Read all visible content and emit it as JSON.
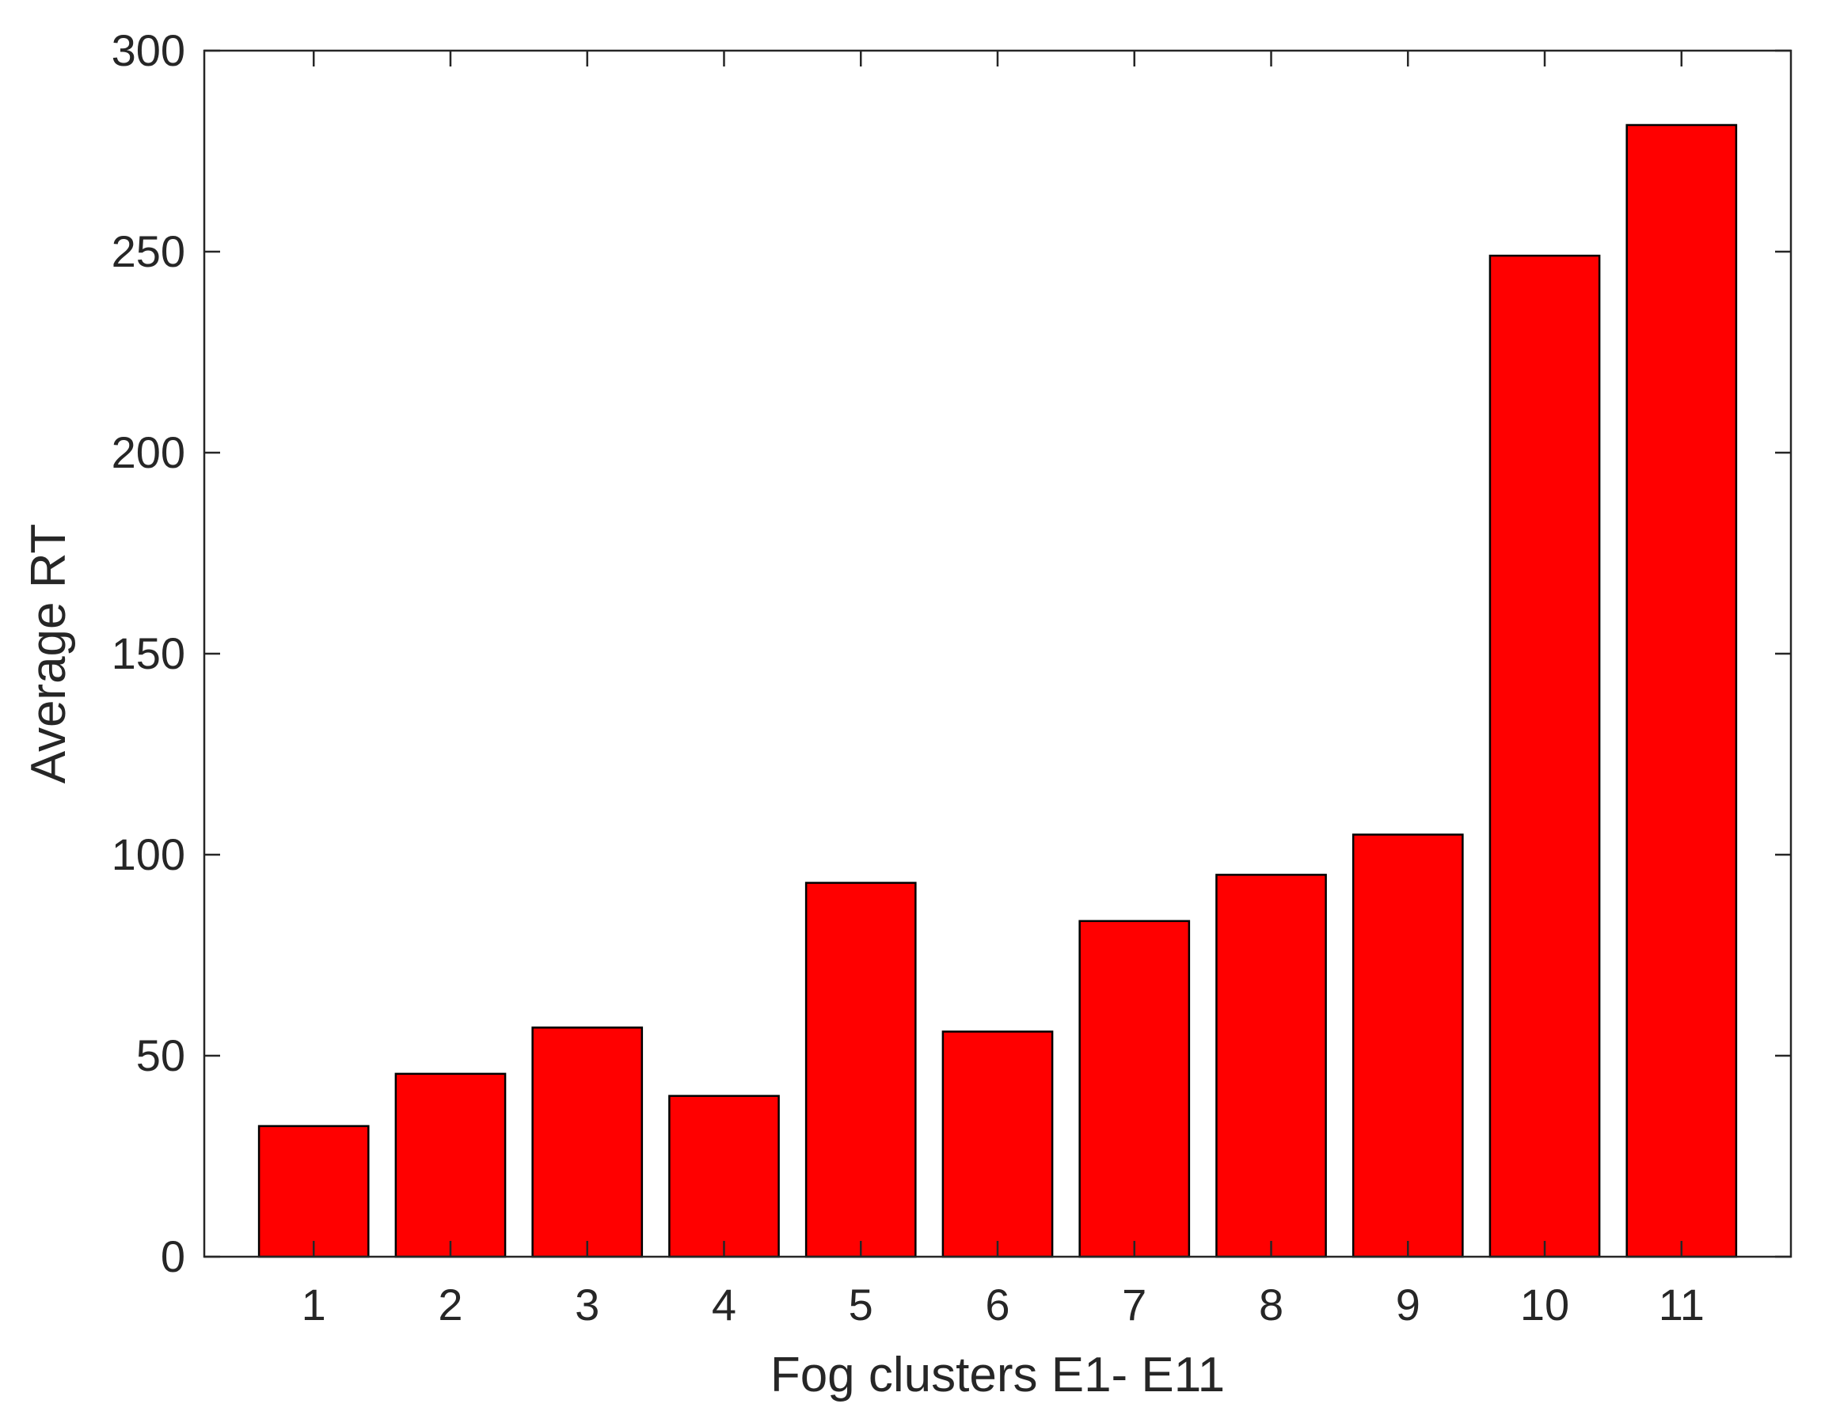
{
  "chart_data": {
    "type": "bar",
    "title": "",
    "xlabel": "Fog clusters E1- E11",
    "ylabel": "Average RT",
    "categories": [
      "1",
      "2",
      "3",
      "4",
      "5",
      "6",
      "7",
      "8",
      "9",
      "10",
      "11"
    ],
    "values": [
      32.5,
      45.5,
      57,
      40,
      93,
      56,
      83.5,
      95,
      105,
      249,
      281.5
    ],
    "ylim": [
      0,
      300
    ],
    "xlim": [
      0.2,
      11.8
    ],
    "yticks": [
      0,
      50,
      100,
      150,
      200,
      250,
      300
    ],
    "grid": false,
    "legend": "none",
    "bar_color": "#ff0000",
    "edge_color": "#000000",
    "axis_color": "#262626"
  }
}
